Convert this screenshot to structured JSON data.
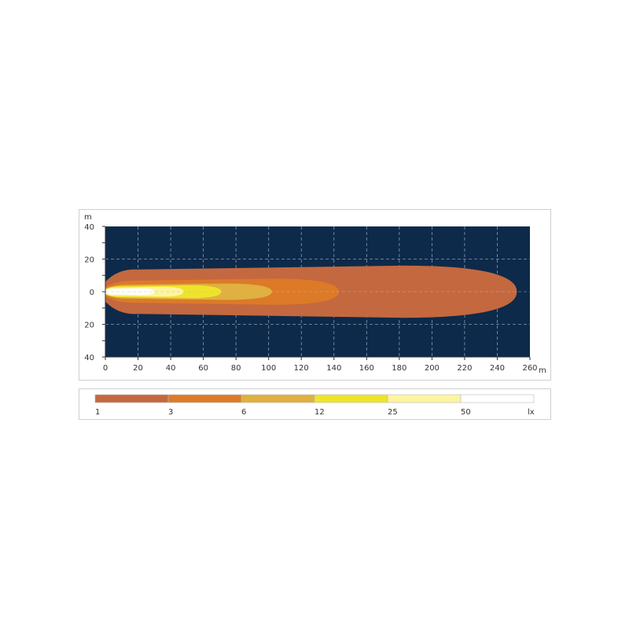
{
  "chart_data": {
    "type": "heatmap",
    "title": "",
    "xlabel": "m",
    "ylabel": "m",
    "xlim": [
      0,
      260
    ],
    "ylim": [
      -40,
      40
    ],
    "x_ticks": [
      0,
      20,
      40,
      60,
      80,
      100,
      120,
      140,
      160,
      180,
      200,
      220,
      240,
      260
    ],
    "x_tick_labels": [
      "0",
      "20",
      "40",
      "60",
      "80",
      "100",
      "120",
      "140",
      "160",
      "180",
      "200",
      "220",
      "240",
      "260"
    ],
    "y_ticks": [
      40,
      20,
      0,
      -20,
      -40
    ],
    "y_tick_labels": [
      "40",
      "20",
      "0",
      "20",
      "40"
    ],
    "grid": true,
    "background_color": "#0d2a4a",
    "contours": [
      {
        "lux": 1,
        "reach_m": 252,
        "half_width_m": 16,
        "color": "#c4683f"
      },
      {
        "lux": 3,
        "reach_m": 143,
        "half_width_m": 8,
        "color": "#dc7a28"
      },
      {
        "lux": 6,
        "reach_m": 102,
        "half_width_m": 5,
        "color": "#e0b040"
      },
      {
        "lux": 12,
        "reach_m": 71,
        "half_width_m": 4,
        "color": "#eee42a"
      },
      {
        "lux": 25,
        "reach_m": 48,
        "half_width_m": 3,
        "color": "#fdf4a0"
      },
      {
        "lux": 50,
        "reach_m": 30,
        "half_width_m": 2,
        "color": "#ffffff"
      }
    ],
    "legend": {
      "placement": "bottom",
      "unit": "lx",
      "labels": [
        "1",
        "3",
        "6",
        "12",
        "25",
        "50"
      ],
      "colors": [
        "#c4683f",
        "#dc7a28",
        "#e0b040",
        "#eee42a",
        "#fdf4a0",
        "#ffffff"
      ]
    }
  }
}
